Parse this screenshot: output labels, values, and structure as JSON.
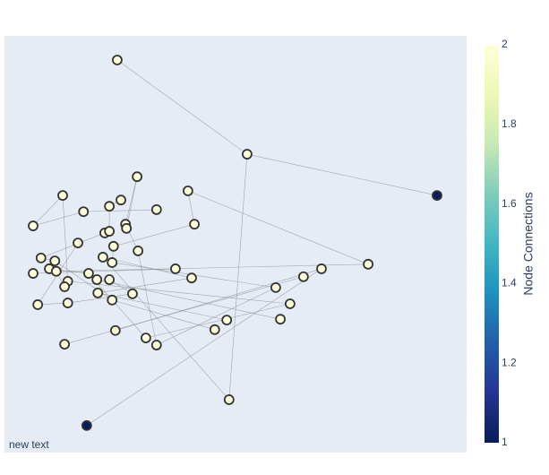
{
  "chart_data": {
    "type": "network",
    "x": [
      0.244,
      0.525,
      0.936,
      0.287,
      0.126,
      0.397,
      0.252,
      0.227,
      0.171,
      0.329,
      0.062,
      0.262,
      0.411,
      0.217,
      0.227,
      0.264,
      0.159,
      0.236,
      0.289,
      0.079,
      0.109,
      0.213,
      0.233,
      0.787,
      0.097,
      0.112,
      0.062,
      0.37,
      0.182,
      0.686,
      0.2,
      0.227,
      0.405,
      0.137,
      0.647,
      0.13,
      0.587,
      0.277,
      0.202,
      0.233,
      0.072,
      0.137,
      0.618,
      0.481,
      0.597,
      0.24,
      0.455,
      0.306,
      0.13,
      0.329,
      0.486,
      0.178
    ],
    "y": [
      0.942,
      0.716,
      0.617,
      0.662,
      0.617,
      0.628,
      0.606,
      0.591,
      0.578,
      0.583,
      0.544,
      0.548,
      0.548,
      0.527,
      0.531,
      0.538,
      0.503,
      0.495,
      0.484,
      0.467,
      0.46,
      0.469,
      0.456,
      0.452,
      0.441,
      0.435,
      0.43,
      0.441,
      0.43,
      0.441,
      0.415,
      0.415,
      0.419,
      0.411,
      0.422,
      0.398,
      0.396,
      0.381,
      0.383,
      0.366,
      0.355,
      0.359,
      0.357,
      0.318,
      0.32,
      0.293,
      0.295,
      0.275,
      0.26,
      0.258,
      0.127,
      0.065
    ],
    "values": [
      2,
      2,
      1,
      2,
      2,
      2,
      2,
      2,
      2,
      2,
      2,
      2,
      2,
      2,
      2,
      2,
      2,
      2,
      2,
      2,
      2,
      2,
      2,
      2,
      2,
      2,
      2,
      2,
      2,
      2,
      2,
      2,
      2,
      2,
      2,
      2,
      2,
      2,
      2,
      2,
      2,
      2,
      2,
      2,
      2,
      2,
      2,
      2,
      2,
      2,
      2,
      1
    ],
    "edges": [
      [
        0,
        1
      ],
      [
        1,
        2
      ],
      [
        1,
        50
      ],
      [
        50,
        21
      ],
      [
        51,
        29
      ],
      [
        3,
        11
      ],
      [
        3,
        15
      ],
      [
        4,
        10
      ],
      [
        4,
        33
      ],
      [
        10,
        8
      ],
      [
        8,
        9
      ],
      [
        6,
        7
      ],
      [
        7,
        14
      ],
      [
        5,
        12
      ],
      [
        5,
        23
      ],
      [
        11,
        18
      ],
      [
        12,
        17
      ],
      [
        13,
        19
      ],
      [
        16,
        40
      ],
      [
        17,
        22
      ],
      [
        18,
        49
      ],
      [
        19,
        20
      ],
      [
        20,
        24
      ],
      [
        20,
        39
      ],
      [
        21,
        32
      ],
      [
        22,
        36
      ],
      [
        23,
        25
      ],
      [
        24,
        28
      ],
      [
        25,
        35
      ],
      [
        26,
        27
      ],
      [
        28,
        47
      ],
      [
        29,
        45
      ],
      [
        30,
        44
      ],
      [
        31,
        37
      ],
      [
        32,
        38
      ],
      [
        33,
        42
      ],
      [
        34,
        48
      ],
      [
        36,
        49
      ],
      [
        37,
        41
      ],
      [
        38,
        43
      ],
      [
        39,
        46
      ],
      [
        40,
        41
      ],
      [
        42,
        47
      ]
    ],
    "xlim": [
      0,
      1
    ],
    "ylim": [
      0,
      1
    ],
    "colorscale": [
      "#081d58",
      "#253494",
      "#225ea8",
      "#1d91c0",
      "#41b6c4",
      "#7fcdbb",
      "#c7e9b4",
      "#edf8b1",
      "#ffffd9"
    ],
    "colorbar": {
      "title": "Node Connections",
      "lim": [
        1,
        2
      ],
      "ticks": [
        1,
        1.2,
        1.4,
        1.6,
        1.8,
        2
      ]
    },
    "annotation": "new text"
  }
}
